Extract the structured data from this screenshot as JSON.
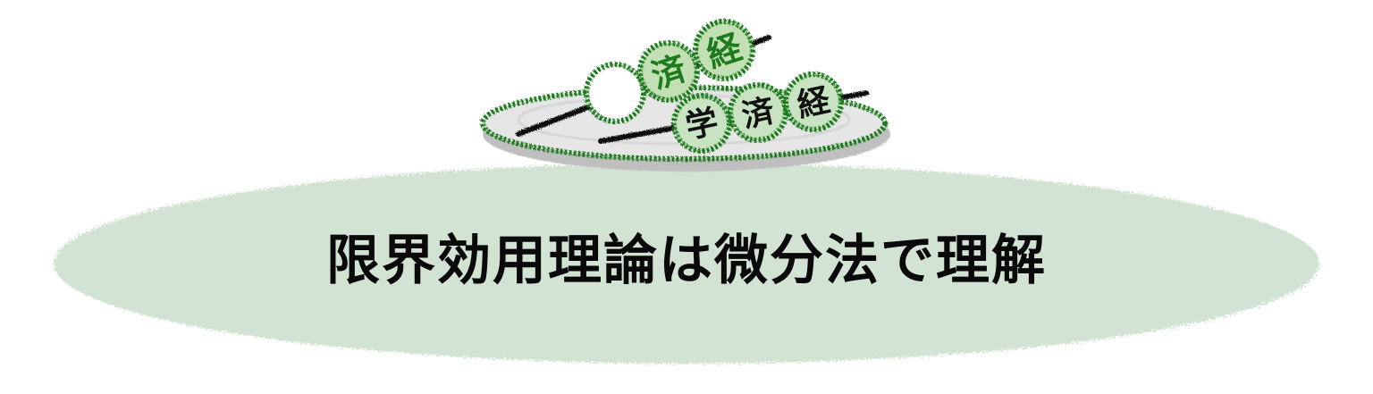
{
  "title": "限界効用理論は微分法で理解",
  "dango_back": {
    "labels": [
      "済",
      "経"
    ]
  },
  "dango_front": {
    "labels": [
      "学",
      "済",
      "経"
    ]
  },
  "colors": {
    "blob_fill": "#d3e3d3",
    "outline_green": "#1d7a1d",
    "dango_plain": "#ffffff",
    "dango_back_fill": "#c2e0b4",
    "dango_front_fill": "#c7e3c1",
    "dango_back_text": "#1d7a1d",
    "dango_front_text": "#111111",
    "plate_fill": "#e6e6e6",
    "plate_shadow": "#bfbfbf",
    "skewer": "#111111"
  }
}
